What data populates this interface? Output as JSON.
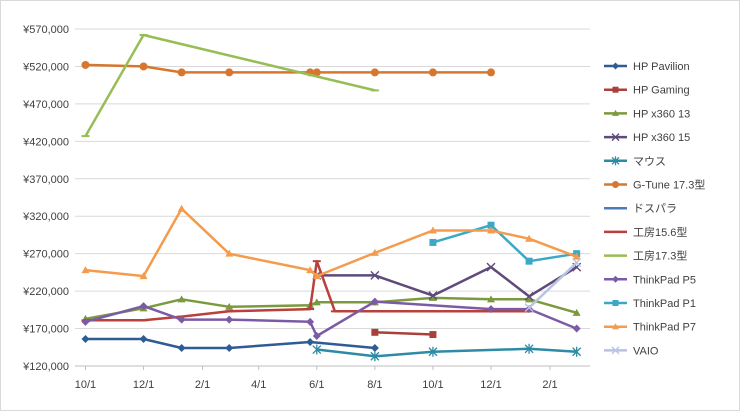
{
  "chart_data": {
    "type": "line",
    "title": "",
    "xlabel": "",
    "ylabel": "",
    "ylim": [
      120000,
      570000
    ],
    "yticks": [
      120000,
      170000,
      220000,
      270000,
      320000,
      370000,
      420000,
      470000,
      520000,
      570000
    ],
    "ytick_labels": [
      "¥120,000",
      "¥170,000",
      "¥220,000",
      "¥270,000",
      "¥320,000",
      "¥370,000",
      "¥420,000",
      "¥470,000",
      "¥520,000",
      "¥570,000"
    ],
    "xlim": [
      "2017-09-20",
      "2019-03-15"
    ],
    "xticks": [
      "2017-10-01",
      "2017-12-01",
      "2018-02-01",
      "2018-04-01",
      "2018-06-01",
      "2018-08-01",
      "2018-10-01",
      "2018-12-01",
      "2019-02-01"
    ],
    "xtick_labels": [
      "10/1",
      "12/1",
      "2/1",
      "4/1",
      "6/1",
      "8/1",
      "10/1",
      "12/1",
      "2/1"
    ],
    "grid": {
      "horizontal": true,
      "vertical": false
    },
    "legend_position": "right",
    "series": [
      {
        "name": "HP Pavilion",
        "color": "#2F5C95",
        "marker": "diamond",
        "points": [
          [
            "2017-10-01",
            156000
          ],
          [
            "2017-12-01",
            156000
          ],
          [
            "2018-01-10",
            144000
          ],
          [
            "2018-03-01",
            144000
          ],
          [
            "2018-05-25",
            152000
          ],
          [
            "2018-08-01",
            144000
          ]
        ]
      },
      {
        "name": "HP Gaming",
        "color": "#A8413C",
        "marker": "square",
        "points": [
          [
            "2018-08-01",
            165000
          ],
          [
            "2018-10-01",
            162000
          ]
        ]
      },
      {
        "name": "HP x360 13",
        "color": "#7B9A3D",
        "marker": "triangle",
        "points": [
          [
            "2017-10-01",
            183000
          ],
          [
            "2017-12-01",
            197000
          ],
          [
            "2018-01-10",
            209000
          ],
          [
            "2018-03-01",
            199000
          ],
          [
            "2018-05-25",
            201000
          ],
          [
            "2018-06-01",
            205000
          ],
          [
            "2018-08-01",
            205000
          ],
          [
            "2018-10-01",
            211000
          ],
          [
            "2018-12-01",
            209000
          ],
          [
            "2019-01-10",
            209000
          ],
          [
            "2019-03-01",
            191000
          ]
        ]
      },
      {
        "name": "HP x360 15",
        "color": "#5F4A7B",
        "marker": "x",
        "points": [
          [
            "2018-06-01",
            241000
          ],
          [
            "2018-08-01",
            241000
          ],
          [
            "2018-10-01",
            214000
          ],
          [
            "2018-12-01",
            252000
          ],
          [
            "2019-01-10",
            213000
          ],
          [
            "2019-03-01",
            252000
          ]
        ]
      },
      {
        "name": "マウス",
        "color": "#2E8AA5",
        "marker": "asterisk",
        "points": [
          [
            "2018-06-01",
            142000
          ],
          [
            "2018-08-01",
            133000
          ],
          [
            "2018-10-01",
            139000
          ],
          [
            "2019-01-10",
            143000
          ],
          [
            "2019-03-01",
            139000
          ]
        ]
      },
      {
        "name": "G-Tune 17.3型",
        "color": "#D7772F",
        "marker": "circle",
        "points": [
          [
            "2017-10-01",
            522000
          ],
          [
            "2017-12-01",
            520000
          ],
          [
            "2018-01-10",
            512000
          ],
          [
            "2018-03-01",
            512000
          ],
          [
            "2018-05-25",
            512000
          ],
          [
            "2018-06-01",
            512000
          ],
          [
            "2018-08-01",
            512000
          ],
          [
            "2018-10-01",
            512000
          ],
          [
            "2018-12-01",
            512000
          ]
        ]
      },
      {
        "name": "ドスパラ",
        "color": "#4A7DB8",
        "marker": "dash",
        "points": []
      },
      {
        "name": "工房15.6型",
        "color": "#B9403C",
        "marker": "dash",
        "points": [
          [
            "2017-10-01",
            181000
          ],
          [
            "2017-12-01",
            181000
          ],
          [
            "2018-01-10",
            186000
          ],
          [
            "2018-03-01",
            193000
          ],
          [
            "2018-05-25",
            196000
          ],
          [
            "2018-06-01",
            260000
          ],
          [
            "2018-06-20",
            193000
          ],
          [
            "2018-08-01",
            193000
          ],
          [
            "2018-10-01",
            193000
          ],
          [
            "2018-12-01",
            193000
          ],
          [
            "2019-01-10",
            193000
          ]
        ]
      },
      {
        "name": "工房17.3型",
        "color": "#98BD55",
        "marker": "dash",
        "points": [
          [
            "2017-10-01",
            427000
          ],
          [
            "2017-12-01",
            562000
          ],
          [
            "2018-08-01",
            488000
          ]
        ]
      },
      {
        "name": "ThinkPad P5",
        "color": "#7C5BA6",
        "marker": "diamond",
        "points": [
          [
            "2017-10-01",
            179000
          ],
          [
            "2017-12-01",
            200000
          ],
          [
            "2018-01-10",
            182000
          ],
          [
            "2018-03-01",
            182000
          ],
          [
            "2018-05-25",
            179000
          ],
          [
            "2018-06-01",
            160000
          ],
          [
            "2018-08-01",
            206000
          ],
          [
            "2018-12-01",
            196000
          ],
          [
            "2019-01-10",
            196000
          ],
          [
            "2019-03-01",
            170000
          ]
        ]
      },
      {
        "name": "ThinkPad P1",
        "color": "#3CA8C5",
        "marker": "square",
        "points": [
          [
            "2018-10-01",
            285000
          ],
          [
            "2018-12-01",
            308000
          ],
          [
            "2019-01-10",
            260000
          ],
          [
            "2019-03-01",
            270000
          ]
        ]
      },
      {
        "name": "ThinkPad P7",
        "color": "#F59B4C",
        "marker": "triangle",
        "points": [
          [
            "2017-10-01",
            248000
          ],
          [
            "2017-12-01",
            240000
          ],
          [
            "2018-01-10",
            330000
          ],
          [
            "2018-03-01",
            270000
          ],
          [
            "2018-05-25",
            248000
          ],
          [
            "2018-06-01",
            240000
          ],
          [
            "2018-08-01",
            271000
          ],
          [
            "2018-10-01",
            301000
          ],
          [
            "2018-12-01",
            301000
          ],
          [
            "2019-01-10",
            290000
          ],
          [
            "2019-03-01",
            266000
          ]
        ]
      },
      {
        "name": "VAIO",
        "color": "#B7C3E2",
        "marker": "x",
        "points": [
          [
            "2019-01-10",
            198000
          ],
          [
            "2019-03-01",
            258000
          ]
        ]
      }
    ]
  }
}
